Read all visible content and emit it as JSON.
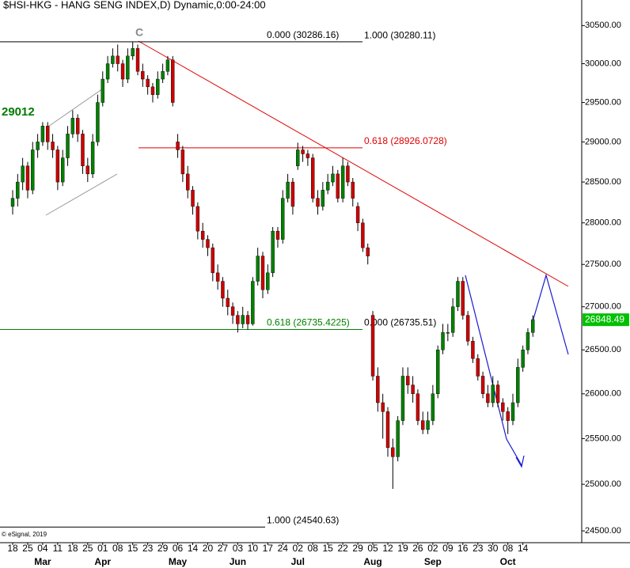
{
  "chart_data": {
    "type": "candlestick",
    "title": "$HSI-HKG - HANG SENG INDEX,D) Dynamic,0:00-24:00",
    "annotation": "29012",
    "pivot_label": "C",
    "copyright": "© eSignal, 2019",
    "last_price": {
      "value": 26848.49,
      "label": "26848.49"
    },
    "up_color": "#008000",
    "down_color": "#cc0000",
    "log_scale": true,
    "ylim": [
      24375,
      30840
    ],
    "yticks": [
      {
        "value": 24500,
        "label": "24500.00"
      },
      {
        "value": 25000,
        "label": "25000.00"
      },
      {
        "value": 25500,
        "label": "25500.00"
      },
      {
        "value": 26000,
        "label": "26000.00"
      },
      {
        "value": 26500,
        "label": "26500.00"
      },
      {
        "value": 27000,
        "label": "27000.00"
      },
      {
        "value": 27500,
        "label": "27500.00"
      },
      {
        "value": 28000,
        "label": "28000.00"
      },
      {
        "value": 28500,
        "label": "28500.00"
      },
      {
        "value": 29000,
        "label": "29000.00"
      },
      {
        "value": 29500,
        "label": "29500.00"
      },
      {
        "value": 30000,
        "label": "30000.00"
      },
      {
        "value": 30500,
        "label": "30500.00"
      }
    ],
    "fib_levels": [
      {
        "value": 30286.16,
        "label": "0.000 (30286.16)"
      },
      {
        "value": 30280.11,
        "label": "1.000 (30280.11)"
      },
      {
        "value": 28926.0728,
        "label": "0.618 (28926.0728)",
        "color": "#e00000"
      },
      {
        "value": 26735.4225,
        "label": "0.618 (26735.4225)",
        "color": "#008000"
      },
      {
        "value": 26735.51,
        "label": "0.000 (26735.51)"
      },
      {
        "value": 24540.63,
        "label": "1.000 (24540.63)"
      }
    ],
    "categories": [
      "18",
      null,
      null,
      "25",
      null,
      null,
      "04",
      null,
      null,
      "11",
      null,
      null,
      "18",
      null,
      null,
      "25",
      null,
      null,
      "01",
      null,
      null,
      "08",
      null,
      null,
      "15",
      null,
      null,
      "23",
      null,
      null,
      "29",
      null,
      null,
      "06",
      null,
      null,
      "14",
      null,
      null,
      "20",
      null,
      null,
      "27",
      null,
      null,
      "03",
      null,
      null,
      "10",
      null,
      null,
      "17",
      null,
      null,
      "24",
      null,
      null,
      "02",
      null,
      null,
      "08",
      null,
      null,
      "15",
      null,
      null,
      "22",
      null,
      null,
      "29",
      null,
      null,
      "05",
      null,
      null,
      "12",
      null,
      null,
      "19",
      null,
      null,
      "26",
      null,
      null,
      "02",
      null,
      null,
      "09",
      null,
      null,
      "16",
      null,
      null,
      "23",
      null,
      null,
      "30",
      null,
      null,
      "08",
      null,
      null,
      "14",
      null,
      null
    ],
    "months": [
      null,
      null,
      null,
      null,
      null,
      null,
      "Mar",
      null,
      null,
      null,
      null,
      null,
      null,
      null,
      null,
      null,
      null,
      null,
      "Apr",
      null,
      null,
      null,
      null,
      null,
      null,
      null,
      null,
      null,
      null,
      null,
      null,
      null,
      null,
      "May",
      null,
      null,
      null,
      null,
      null,
      null,
      null,
      null,
      null,
      null,
      null,
      "Jun",
      null,
      null,
      null,
      null,
      null,
      null,
      null,
      null,
      null,
      null,
      null,
      "Jul",
      null,
      null,
      null,
      null,
      null,
      null,
      null,
      null,
      null,
      null,
      null,
      null,
      null,
      null,
      "Aug",
      null,
      null,
      null,
      null,
      null,
      null,
      null,
      null,
      null,
      null,
      null,
      "Sep",
      null,
      null,
      null,
      null,
      null,
      null,
      null,
      null,
      null,
      null,
      null,
      null,
      null,
      null,
      "Oct",
      null,
      null,
      null,
      null,
      null
    ],
    "ohlc": [
      [
        28200,
        28400,
        28100,
        28300
      ],
      [
        28300,
        28600,
        28200,
        28500
      ],
      [
        28500,
        28800,
        28400,
        28700
      ],
      [
        28700,
        28750,
        28300,
        28400
      ],
      [
        28400,
        29000,
        28350,
        28900
      ],
      [
        28900,
        29100,
        28800,
        29000
      ],
      [
        29000,
        29250,
        28950,
        29200
      ],
      [
        29200,
        29250,
        28900,
        29000
      ],
      [
        29000,
        29100,
        28800,
        28900
      ],
      [
        28900,
        28950,
        28400,
        28500
      ],
      [
        28500,
        28900,
        28450,
        28800
      ],
      [
        28800,
        29200,
        28700,
        29100
      ],
      [
        29100,
        29400,
        29050,
        29300
      ],
      [
        29300,
        29350,
        29000,
        29100
      ],
      [
        29100,
        29150,
        28600,
        28700
      ],
      [
        28700,
        28800,
        28500,
        28600
      ],
      [
        28600,
        29100,
        28550,
        29000
      ],
      [
        29000,
        29600,
        28950,
        29500
      ],
      [
        29500,
        29900,
        29450,
        29800
      ],
      [
        29800,
        30100,
        29750,
        30000
      ],
      [
        30000,
        30200,
        29950,
        30100
      ],
      [
        30100,
        30250,
        29900,
        30000
      ],
      [
        30000,
        30050,
        29700,
        29800
      ],
      [
        29800,
        30200,
        29750,
        30100
      ],
      [
        30100,
        30286,
        30050,
        30200
      ],
      [
        30200,
        30250,
        29850,
        29900
      ],
      [
        29900,
        30000,
        29700,
        29800
      ],
      [
        29800,
        29850,
        29600,
        29700
      ],
      [
        29700,
        29750,
        29500,
        29600
      ],
      [
        29600,
        29900,
        29550,
        29800
      ],
      [
        29800,
        30000,
        29750,
        29900
      ],
      [
        29900,
        30100,
        29850,
        30050
      ],
      [
        30050,
        30100,
        29450,
        29500
      ],
      [
        29000,
        29100,
        28800,
        28900
      ],
      [
        28900,
        28950,
        28500,
        28600
      ],
      [
        28600,
        28700,
        28300,
        28400
      ],
      [
        28400,
        28450,
        28100,
        28200
      ],
      [
        28200,
        28250,
        27800,
        27900
      ],
      [
        27900,
        28000,
        27700,
        27800
      ],
      [
        27800,
        27850,
        27600,
        27700
      ],
      [
        27700,
        27750,
        27300,
        27400
      ],
      [
        27400,
        27500,
        27200,
        27300
      ],
      [
        27300,
        27350,
        27000,
        27100
      ],
      [
        27100,
        27200,
        26900,
        27000
      ],
      [
        27000,
        27050,
        26800,
        26900
      ],
      [
        26900,
        26950,
        26700,
        26800
      ],
      [
        26800,
        27000,
        26750,
        26900
      ],
      [
        26900,
        26950,
        26735,
        26800
      ],
      [
        26800,
        27350,
        26780,
        27300
      ],
      [
        27300,
        27700,
        27250,
        27600
      ],
      [
        27600,
        27650,
        27100,
        27200
      ],
      [
        27200,
        27500,
        27150,
        27400
      ],
      [
        27400,
        27950,
        27350,
        27900
      ],
      [
        27900,
        27950,
        27700,
        27800
      ],
      [
        27800,
        28400,
        27750,
        28300
      ],
      [
        28300,
        28600,
        28250,
        28500
      ],
      [
        28500,
        28550,
        28100,
        28200
      ],
      [
        28700,
        28990,
        28650,
        28900
      ],
      [
        28900,
        28950,
        28750,
        28850
      ],
      [
        28850,
        28900,
        28700,
        28800
      ],
      [
        28800,
        28850,
        28250,
        28300
      ],
      [
        28300,
        28400,
        28100,
        28200
      ],
      [
        28200,
        28500,
        28150,
        28400
      ],
      [
        28400,
        28600,
        28350,
        28500
      ],
      [
        28500,
        28700,
        28450,
        28600
      ],
      [
        28600,
        28650,
        28250,
        28300
      ],
      [
        28300,
        28800,
        28250,
        28700
      ],
      [
        28700,
        28750,
        28450,
        28500
      ],
      [
        28500,
        28550,
        28200,
        28300
      ],
      [
        28200,
        28250,
        27900,
        28000
      ],
      [
        28000,
        28050,
        27650,
        27700
      ],
      [
        27700,
        27750,
        27500,
        27600
      ],
      [
        26900,
        26950,
        26150,
        26200
      ],
      [
        26200,
        26300,
        25800,
        25900
      ],
      [
        25900,
        26000,
        25500,
        25800
      ],
      [
        25800,
        25850,
        25300,
        25400
      ],
      [
        25400,
        25500,
        24950,
        25300
      ],
      [
        25300,
        25750,
        25250,
        25700
      ],
      [
        25700,
        26300,
        25650,
        26200
      ],
      [
        26200,
        26300,
        26000,
        26100
      ],
      [
        26100,
        26200,
        25900,
        26000
      ],
      [
        26000,
        26050,
        25650,
        25700
      ],
      [
        25700,
        25800,
        25550,
        25600
      ],
      [
        25600,
        25800,
        25550,
        25700
      ],
      [
        25700,
        26100,
        25650,
        26000
      ],
      [
        26000,
        26550,
        25950,
        26500
      ],
      [
        26500,
        26800,
        26450,
        26700
      ],
      [
        26700,
        26800,
        26600,
        26700
      ],
      [
        26700,
        27100,
        26650,
        27000
      ],
      [
        27000,
        27350,
        26950,
        27300
      ],
      [
        27300,
        27350,
        26850,
        26900
      ],
      [
        26900,
        26950,
        26550,
        26600
      ],
      [
        26600,
        26650,
        26350,
        26400
      ],
      [
        26400,
        26450,
        26150,
        26200
      ],
      [
        26200,
        26250,
        25950,
        26000
      ],
      [
        26000,
        26100,
        25850,
        25900
      ],
      [
        25900,
        26200,
        25850,
        26100
      ],
      [
        26100,
        26150,
        25850,
        25900
      ],
      [
        25900,
        25950,
        25700,
        25800
      ],
      [
        25800,
        25850,
        25550,
        25700
      ],
      [
        25700,
        26000,
        25650,
        25900
      ],
      [
        25900,
        26400,
        25850,
        26300
      ],
      [
        26300,
        26550,
        26250,
        26500
      ],
      [
        26500,
        26750,
        26450,
        26700
      ],
      [
        26700,
        26900,
        26650,
        26850
      ]
    ]
  }
}
